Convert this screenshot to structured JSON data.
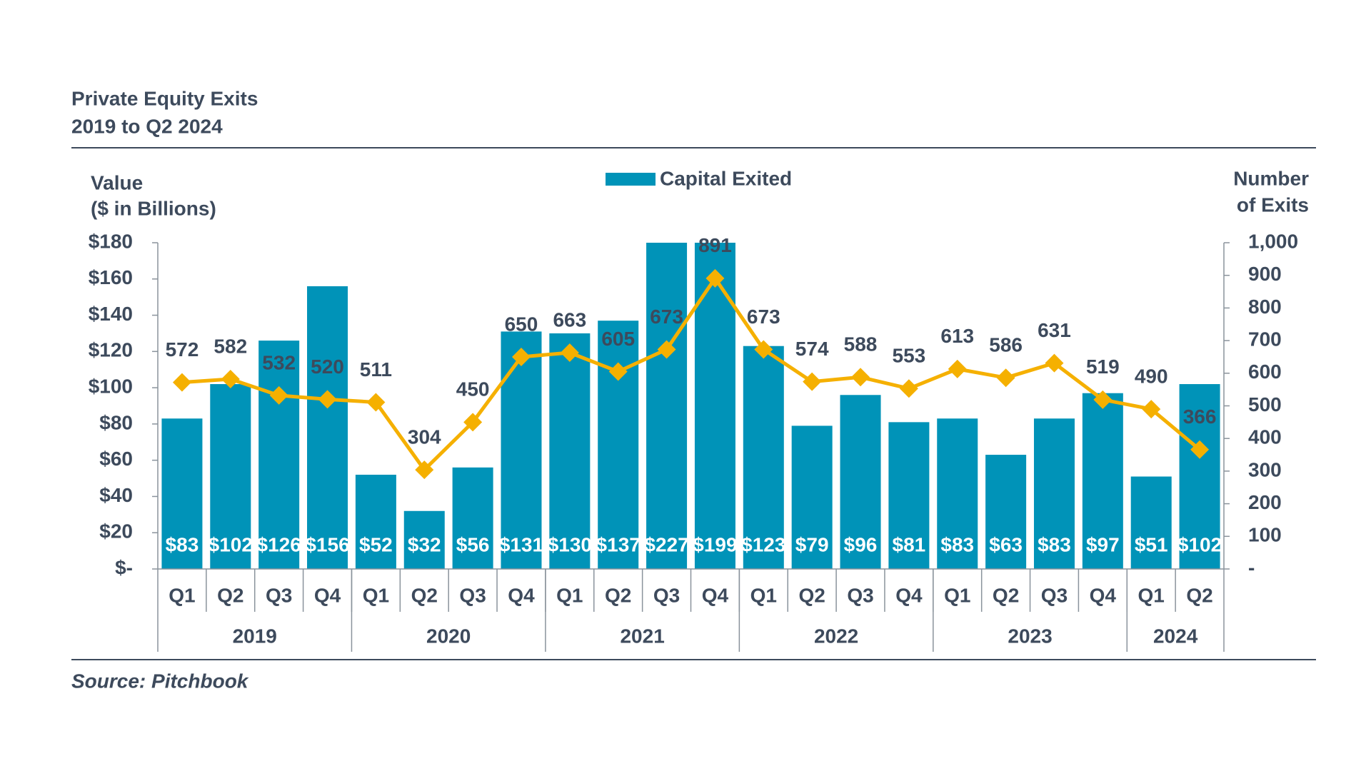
{
  "chart_data": {
    "type": "bar_line",
    "title": "Private Equity Exits",
    "subtitle": "2019 to Q2 2024",
    "source": "Source: Pitchbook",
    "y_label": [
      "Value",
      "($ in Billions)"
    ],
    "y2_label": [
      "Number",
      "of Exits"
    ],
    "category_groups": [
      {
        "label": "2019",
        "categories": [
          "Q1",
          "Q2",
          "Q3",
          "Q4"
        ]
      },
      {
        "label": "2020",
        "categories": [
          "Q1",
          "Q2",
          "Q3",
          "Q4"
        ]
      },
      {
        "label": "2021",
        "categories": [
          "Q1",
          "Q2",
          "Q3",
          "Q4"
        ]
      },
      {
        "label": "2022",
        "categories": [
          "Q1",
          "Q2",
          "Q3",
          "Q4"
        ]
      },
      {
        "label": "2023",
        "categories": [
          "Q1",
          "Q2",
          "Q3",
          "Q4"
        ]
      },
      {
        "label": "2024",
        "categories": [
          "Q1",
          "Q2"
        ]
      }
    ],
    "series": [
      {
        "name": "Capital Exited",
        "type": "bar",
        "color": "#0093b8",
        "values": [
          83,
          102,
          126,
          156,
          52,
          32,
          56,
          131,
          130,
          137,
          227,
          199,
          123,
          79,
          96,
          81,
          83,
          63,
          83,
          97,
          51,
          102
        ],
        "value_labels": [
          "$83",
          "$102",
          "$126",
          "$156",
          "$52",
          "$32",
          "$56",
          "$131",
          "$130",
          "$137",
          "$227",
          "$199",
          "$123",
          "$79",
          "$96",
          "$81",
          "$83",
          "$63",
          "$83",
          "$97",
          "$51",
          "$102"
        ]
      },
      {
        "type": "line",
        "axis": "y2",
        "color": "#f5b000",
        "values": [
          572,
          582,
          532,
          520,
          511,
          304,
          450,
          650,
          663,
          605,
          673,
          891,
          673,
          574,
          588,
          553,
          613,
          586,
          631,
          519,
          490,
          366
        ]
      }
    ],
    "ylim": [
      0,
      180
    ],
    "yticks": [
      {
        "value": 0,
        "label": "$-"
      },
      {
        "value": 20,
        "label": "$20"
      },
      {
        "value": 40,
        "label": "$40"
      },
      {
        "value": 60,
        "label": "$60"
      },
      {
        "value": 80,
        "label": "$80"
      },
      {
        "value": 100,
        "label": "$100"
      },
      {
        "value": 120,
        "label": "$120"
      },
      {
        "value": 140,
        "label": "$140"
      },
      {
        "value": 160,
        "label": "$160"
      },
      {
        "value": 180,
        "label": "$180"
      }
    ],
    "y2lim": [
      0,
      1000
    ],
    "y2ticks": [
      {
        "value": 0,
        "label": "-"
      },
      100,
      200,
      300,
      400,
      500,
      600,
      700,
      800,
      900,
      {
        "value": 1000,
        "label": "1,000"
      }
    ],
    "grid": false
  }
}
